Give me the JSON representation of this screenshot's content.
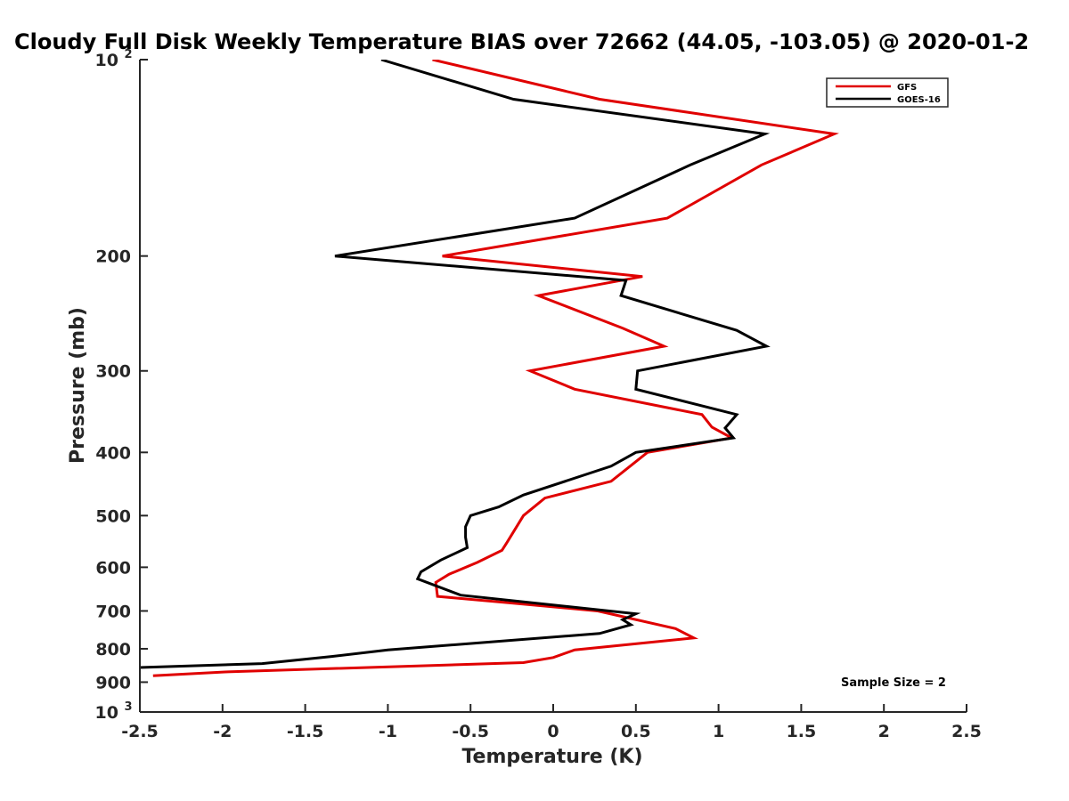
{
  "chart_data": {
    "type": "line",
    "title": "Cloudy Full Disk Weekly Temperature BIAS over 72662 (44.05, -103.05) @ 2020-01-2",
    "xlabel": "Temperature (K)",
    "ylabel": "Pressure (mb)",
    "xlim": [
      -2.5,
      2.5
    ],
    "ylim": [
      100,
      1000
    ],
    "y_scale": "log",
    "y_reversed": true,
    "grid": false,
    "legend_position": "top-right",
    "x_ticks": [
      -2.5,
      -2,
      -1.5,
      -1,
      -0.5,
      0,
      0.5,
      1,
      1.5,
      2,
      2.5
    ],
    "x_tick_labels": [
      "-2.5",
      "-2",
      "-1.5",
      "-1",
      "-0.5",
      "0",
      "0.5",
      "1",
      "1.5",
      "2",
      "2.5"
    ],
    "y_ticks": [
      {
        "value": 100,
        "base": "10",
        "exp": "2"
      },
      {
        "value": 200,
        "label": "200"
      },
      {
        "value": 300,
        "label": "300"
      },
      {
        "value": 400,
        "label": "400"
      },
      {
        "value": 500,
        "label": "500"
      },
      {
        "value": 600,
        "label": "600"
      },
      {
        "value": 700,
        "label": "700"
      },
      {
        "value": 800,
        "label": "800"
      },
      {
        "value": 900,
        "label": "900"
      },
      {
        "value": 1000,
        "base": "10",
        "exp": "3"
      }
    ],
    "series": [
      {
        "name": "GFS",
        "color": "#e00000",
        "points": [
          {
            "x": -0.73,
            "y": 100
          },
          {
            "x": 0.28,
            "y": 115
          },
          {
            "x": 1.7,
            "y": 130
          },
          {
            "x": 1.26,
            "y": 145
          },
          {
            "x": 0.69,
            "y": 175
          },
          {
            "x": -0.67,
            "y": 200
          },
          {
            "x": 0.54,
            "y": 215
          },
          {
            "x": -0.09,
            "y": 230
          },
          {
            "x": 0.42,
            "y": 258
          },
          {
            "x": 0.67,
            "y": 275
          },
          {
            "x": -0.14,
            "y": 300
          },
          {
            "x": 0.13,
            "y": 320
          },
          {
            "x": 0.9,
            "y": 350
          },
          {
            "x": 0.96,
            "y": 366
          },
          {
            "x": 1.08,
            "y": 380
          },
          {
            "x": 0.57,
            "y": 400
          },
          {
            "x": 0.45,
            "y": 423
          },
          {
            "x": 0.35,
            "y": 443
          },
          {
            "x": -0.05,
            "y": 470
          },
          {
            "x": -0.18,
            "y": 500
          },
          {
            "x": -0.28,
            "y": 550
          },
          {
            "x": -0.31,
            "y": 565
          },
          {
            "x": -0.46,
            "y": 590
          },
          {
            "x": -0.63,
            "y": 615
          },
          {
            "x": -0.71,
            "y": 633
          },
          {
            "x": -0.7,
            "y": 665
          },
          {
            "x": -0.27,
            "y": 680
          },
          {
            "x": 0.27,
            "y": 700
          },
          {
            "x": 0.74,
            "y": 745
          },
          {
            "x": 0.85,
            "y": 770
          },
          {
            "x": 0.13,
            "y": 803
          },
          {
            "x": 0,
            "y": 825
          },
          {
            "x": -0.18,
            "y": 840
          },
          {
            "x": -1.97,
            "y": 868
          },
          {
            "x": -2.42,
            "y": 880
          }
        ]
      },
      {
        "name": "GOES-16",
        "color": "#000000",
        "points": [
          {
            "x": -1.04,
            "y": 100
          },
          {
            "x": -0.24,
            "y": 115
          },
          {
            "x": 1.28,
            "y": 130
          },
          {
            "x": 0.83,
            "y": 145
          },
          {
            "x": 0.13,
            "y": 175
          },
          {
            "x": -1.32,
            "y": 200
          },
          {
            "x": 0.44,
            "y": 218
          },
          {
            "x": 0.41,
            "y": 230
          },
          {
            "x": 1.11,
            "y": 260
          },
          {
            "x": 1.29,
            "y": 275
          },
          {
            "x": 0.51,
            "y": 300
          },
          {
            "x": 0.5,
            "y": 320
          },
          {
            "x": 1.11,
            "y": 350
          },
          {
            "x": 1.04,
            "y": 367
          },
          {
            "x": 1.09,
            "y": 380
          },
          {
            "x": 0.5,
            "y": 400
          },
          {
            "x": 0.35,
            "y": 420
          },
          {
            "x": -0.18,
            "y": 465
          },
          {
            "x": -0.33,
            "y": 485
          },
          {
            "x": -0.5,
            "y": 500
          },
          {
            "x": -0.53,
            "y": 520
          },
          {
            "x": -0.53,
            "y": 540
          },
          {
            "x": -0.52,
            "y": 560
          },
          {
            "x": -0.68,
            "y": 585
          },
          {
            "x": -0.8,
            "y": 610
          },
          {
            "x": -0.82,
            "y": 625
          },
          {
            "x": -0.56,
            "y": 662
          },
          {
            "x": 0.5,
            "y": 707
          },
          {
            "x": 0.42,
            "y": 722
          },
          {
            "x": 0.47,
            "y": 735
          },
          {
            "x": 0.28,
            "y": 758
          },
          {
            "x": -1,
            "y": 803
          },
          {
            "x": -1.34,
            "y": 822
          },
          {
            "x": -1.76,
            "y": 843
          },
          {
            "x": -2.52,
            "y": 855
          }
        ]
      }
    ],
    "annotations": [
      "Sample Size = 2"
    ]
  }
}
